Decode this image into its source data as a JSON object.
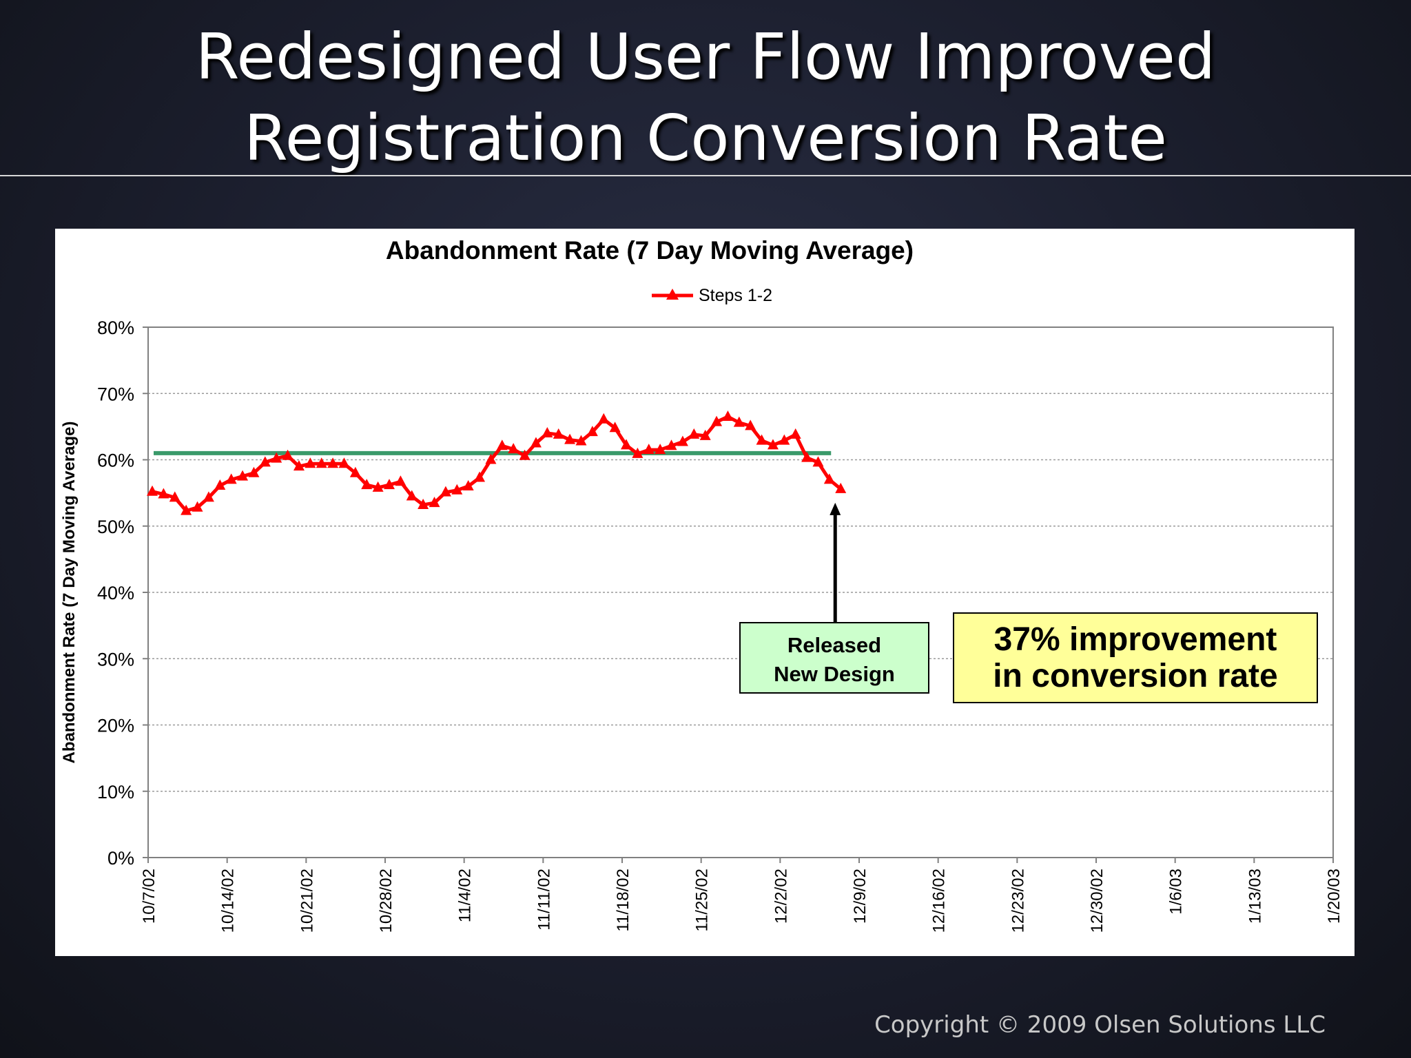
{
  "slide": {
    "title_lines": [
      "Redesigned User Flow Improved",
      "Registration Conversion Rate"
    ],
    "copyright": "Copyright © 2009 Olsen Solutions LLC"
  },
  "chart_data": {
    "type": "line",
    "title": "Abandonment Rate (7 Day Moving Average)",
    "ylabel": "Abandonment Rate (7 Day Moving Average)",
    "xlabel": "",
    "legend": {
      "placement": "top-center",
      "entries": [
        "Steps 1-2"
      ]
    },
    "ylim": [
      0,
      80
    ],
    "y_ticks": [
      "0%",
      "10%",
      "20%",
      "30%",
      "40%",
      "50%",
      "60%",
      "70%",
      "80%"
    ],
    "x_range": [
      "2002-10-07",
      "2003-01-20"
    ],
    "x_ticks": [
      "10/7/02",
      "10/14/02",
      "10/21/02",
      "10/28/02",
      "11/4/02",
      "11/11/02",
      "11/18/02",
      "11/25/02",
      "12/2/02",
      "12/9/02",
      "12/16/02",
      "12/23/02",
      "12/30/02",
      "1/6/03",
      "1/13/03",
      "1/20/03"
    ],
    "grid": "horizontal dotted",
    "series": [
      {
        "name": "Steps 1-2",
        "color": "#ff0000",
        "marker": "triangle",
        "x": [
          "2002-10-07",
          "2002-10-08",
          "2002-10-09",
          "2002-10-10",
          "2002-10-11",
          "2002-10-12",
          "2002-10-13",
          "2002-10-14",
          "2002-10-15",
          "2002-10-16",
          "2002-10-17",
          "2002-10-18",
          "2002-10-19",
          "2002-10-20",
          "2002-10-21",
          "2002-10-22",
          "2002-10-23",
          "2002-10-24",
          "2002-10-25",
          "2002-10-26",
          "2002-10-27",
          "2002-10-28",
          "2002-10-29",
          "2002-10-30",
          "2002-10-31",
          "2002-11-01",
          "2002-11-02",
          "2002-11-03",
          "2002-11-04",
          "2002-11-05",
          "2002-11-06",
          "2002-11-07",
          "2002-11-08",
          "2002-11-09",
          "2002-11-10",
          "2002-11-11",
          "2002-11-12",
          "2002-11-13",
          "2002-11-14",
          "2002-11-15",
          "2002-11-16",
          "2002-11-17",
          "2002-11-18",
          "2002-11-19",
          "2002-11-20",
          "2002-11-21",
          "2002-11-22",
          "2002-11-23",
          "2002-11-24",
          "2002-11-25",
          "2002-11-26",
          "2002-11-27",
          "2002-11-28",
          "2002-11-29",
          "2002-11-30",
          "2002-12-01",
          "2002-12-02",
          "2002-12-03",
          "2002-12-04",
          "2002-12-05",
          "2002-12-06",
          "2002-12-07"
        ],
        "values": [
          55.2,
          54.8,
          54.3,
          52.3,
          52.8,
          54.3,
          56.1,
          57.0,
          57.5,
          58.0,
          59.6,
          60.2,
          60.6,
          59.0,
          59.4,
          59.4,
          59.4,
          59.4,
          58.0,
          56.2,
          55.8,
          56.2,
          56.7,
          54.5,
          53.2,
          53.5,
          55.1,
          55.4,
          56.0,
          57.3,
          60.0,
          62.1,
          61.6,
          60.6,
          62.5,
          64.0,
          63.8,
          63.0,
          62.8,
          64.2,
          66.1,
          64.8,
          62.2,
          60.9,
          61.5,
          61.5,
          62.1,
          62.7,
          63.8,
          63.6,
          65.7,
          66.5,
          65.6,
          65.1,
          62.9,
          62.2,
          62.9,
          63.8,
          60.3,
          59.6,
          57.0,
          55.6
        ]
      }
    ],
    "reference_line": {
      "value": 61,
      "from": "2002-10-07",
      "to": "2002-12-07",
      "color": "#3a9a6a"
    },
    "annotations": [
      {
        "text_lines": [
          "Released",
          "New Design"
        ],
        "arrow_to": "2002-12-07",
        "fill": "#ccffcc"
      },
      {
        "text_lines": [
          "37% improvement",
          "in conversion rate"
        ],
        "fill": "#ffff99"
      }
    ]
  }
}
